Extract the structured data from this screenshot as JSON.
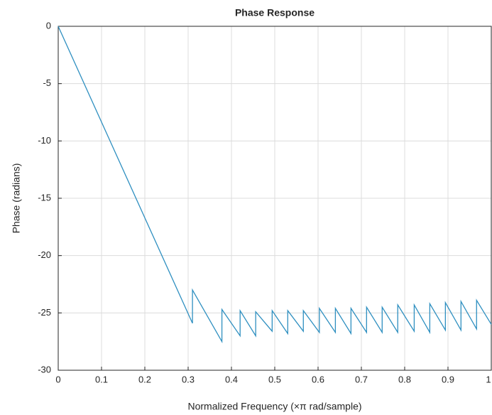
{
  "chart_data": {
    "type": "line",
    "title": "Phase Response",
    "xlabel": "Normalized Frequency  (×π rad/sample)",
    "ylabel": "Phase (radians)",
    "x": [
      0,
      0.31,
      0.31,
      0.378,
      0.378,
      0.42,
      0.42,
      0.456,
      0.456,
      0.494,
      0.494,
      0.53,
      0.53,
      0.566,
      0.566,
      0.603,
      0.603,
      0.64,
      0.64,
      0.676,
      0.676,
      0.712,
      0.712,
      0.748,
      0.748,
      0.784,
      0.784,
      0.822,
      0.822,
      0.858,
      0.858,
      0.894,
      0.894,
      0.93,
      0.93,
      0.966,
      0.966,
      1.0
    ],
    "series": [
      {
        "color": "#2e8fc0",
        "values": [
          0,
          -25.9,
          -23.0,
          -27.5,
          -24.7,
          -27.0,
          -24.8,
          -27.0,
          -24.9,
          -26.6,
          -24.8,
          -26.8,
          -24.8,
          -26.6,
          -24.8,
          -26.7,
          -24.6,
          -26.7,
          -24.6,
          -26.8,
          -24.6,
          -26.7,
          -24.5,
          -26.7,
          -24.5,
          -26.7,
          -24.3,
          -26.6,
          -24.3,
          -26.7,
          -24.2,
          -26.5,
          -24.1,
          -26.5,
          -24.0,
          -26.4,
          -23.9,
          -26.0
        ]
      }
    ],
    "xlim": [
      0,
      1
    ],
    "ylim": [
      -30,
      0
    ],
    "xticks": [
      0,
      0.1,
      0.2,
      0.3,
      0.4,
      0.5,
      0.6,
      0.7,
      0.8,
      0.9,
      1
    ],
    "yticks": [
      -30,
      -25,
      -20,
      -15,
      -10,
      -5,
      0
    ],
    "grid": true
  }
}
